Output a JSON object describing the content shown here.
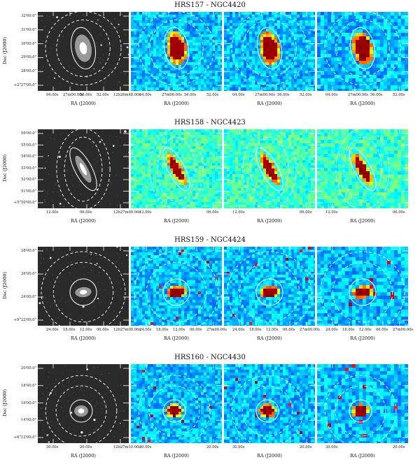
{
  "figure": {
    "ylabel": "Dec (J2000)",
    "xlabel": "RA (J2000)",
    "colors": {
      "frame_dark": "#000000",
      "ellipse": "#ffffff",
      "map_low": "#0a3ad0",
      "map_high": "#7a0000"
    },
    "rows": [
      {
        "title": "HRS157 - NGC4420",
        "yticks": [
          "32'00.0\"",
          "31'00.0\"",
          "30'00.0\"",
          "29'00.0\"",
          "28'00.0\"",
          "+2°27'00.0\""
        ],
        "xticks": [
          [
            "04.00s",
            "27m00.00s",
            "56.00s",
            "52.00s",
            "12h26m48.00s"
          ],
          [
            "04.00s",
            "27m00.00s",
            "56.00s",
            "52.00s"
          ],
          [
            "04.00s",
            "27m00.00s",
            "56.00s",
            "52.00s"
          ],
          [
            "04.00s",
            "27m00.00s",
            "56.00s",
            "52.00s"
          ]
        ]
      },
      {
        "title": "HRS158 - NGC4423",
        "yticks": [
          "56'00.0\"",
          "55'00.0\"",
          "54'00.0\"",
          "53'00.0\"",
          "52'00.0\"",
          "51'00.0\"",
          "+5°50'00.0\""
        ],
        "xticks": [
          [
            "12.00s",
            "06.00s",
            "12h27m00.00s"
          ],
          [
            "12.00s",
            "06.00s"
          ],
          [
            "12.00s",
            "06.00s"
          ],
          [
            "12.00s",
            "06.00s"
          ]
        ]
      },
      {
        "title": "HRS159 - NGC4424",
        "yticks": [
          "28'00.0\"",
          "26'00.0\"",
          "24'00.0\"",
          "+9°22'00.0\""
        ],
        "xticks": [
          [
            "24.00s",
            "18.00s",
            "12.00s",
            "06.00s",
            "12h27m00.00s"
          ],
          [
            "24.00s",
            "18.00s",
            "12.00s",
            "06.00s",
            "27m00.00s"
          ],
          [
            "24.00s",
            "18.00s",
            "12.00s",
            "06.00s",
            "27m00.00s"
          ],
          [
            "24.00s",
            "18.00s",
            "12.00s",
            "06.00s",
            "27m00.00s"
          ]
        ]
      },
      {
        "title": "HRS160 - NGC4430",
        "yticks": [
          "20'00.0\"",
          "18'00.0\"",
          "16'00.0\"",
          "14'00.0\"",
          "+6°12'00.0\""
        ],
        "xticks": [
          [
            "30.00s",
            "20.00s",
            "12h27m10.00s"
          ],
          [
            "30.00s",
            "20.00s"
          ],
          [
            "30.00s",
            "20.00s"
          ],
          [
            "30.00s",
            "20.00s"
          ]
        ]
      }
    ]
  }
}
